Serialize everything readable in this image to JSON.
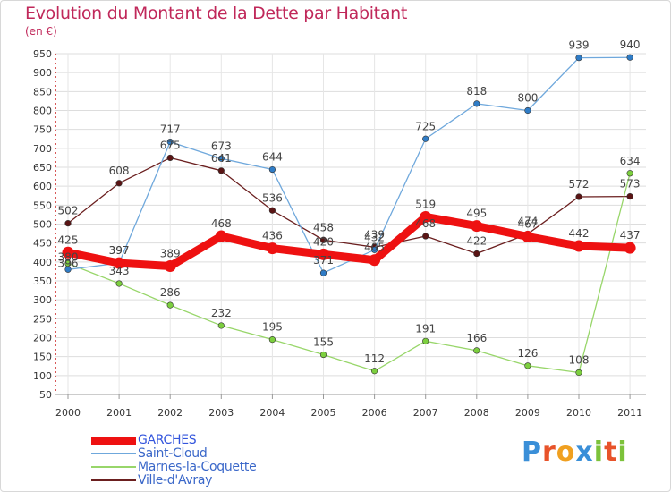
{
  "header": {
    "title": "Evolution du Montant de la Dette par Habitant",
    "unit": "(en €)"
  },
  "logo": {
    "text": "Proxiti",
    "colors": [
      "#3a8fd8",
      "#e8532a",
      "#f0a020",
      "#3a8fd8",
      "#7cc23a",
      "#e8532a",
      "#7cc23a"
    ]
  },
  "chart_data": {
    "type": "line",
    "title": "Evolution du Montant de la Dette par Habitant",
    "subtitle": "(en €)",
    "xlabel": "",
    "ylabel": "",
    "x": [
      "2000",
      "2001",
      "2002",
      "2003",
      "2004",
      "2005",
      "2006",
      "2007",
      "2008",
      "2009",
      "2010",
      "2011"
    ],
    "ylim": [
      50,
      950
    ],
    "yticks": [
      50,
      100,
      150,
      200,
      250,
      300,
      350,
      400,
      450,
      500,
      550,
      600,
      650,
      700,
      750,
      800,
      850,
      900,
      950
    ],
    "grid": true,
    "legend_position": "bottom-left",
    "series": [
      {
        "name": "Ville-d'Avray",
        "color": "#6b1f1f",
        "values": [
          502,
          608,
          675,
          641,
          536,
          458,
          439,
          468,
          422,
          474,
          572,
          573
        ]
      },
      {
        "name": "Marnes-la-Coquette",
        "color": "#98d66a",
        "values": [
          396,
          343,
          286,
          232,
          195,
          155,
          112,
          191,
          166,
          126,
          108,
          634
        ]
      },
      {
        "name": "Saint-Cloud",
        "color": "#6fa8dc",
        "values": [
          380,
          397,
          717,
          673,
          644,
          371,
          432,
          725,
          818,
          800,
          939,
          940
        ]
      },
      {
        "name": "GARCHES",
        "color": "#ee1111",
        "values": [
          425,
          397,
          389,
          468,
          436,
          420,
          405,
          519,
          495,
          467,
          442,
          437
        ]
      }
    ],
    "legend_order": [
      "GARCHES",
      "Saint-Cloud",
      "Marnes-la-Coquette",
      "Ville-d'Avray"
    ]
  }
}
